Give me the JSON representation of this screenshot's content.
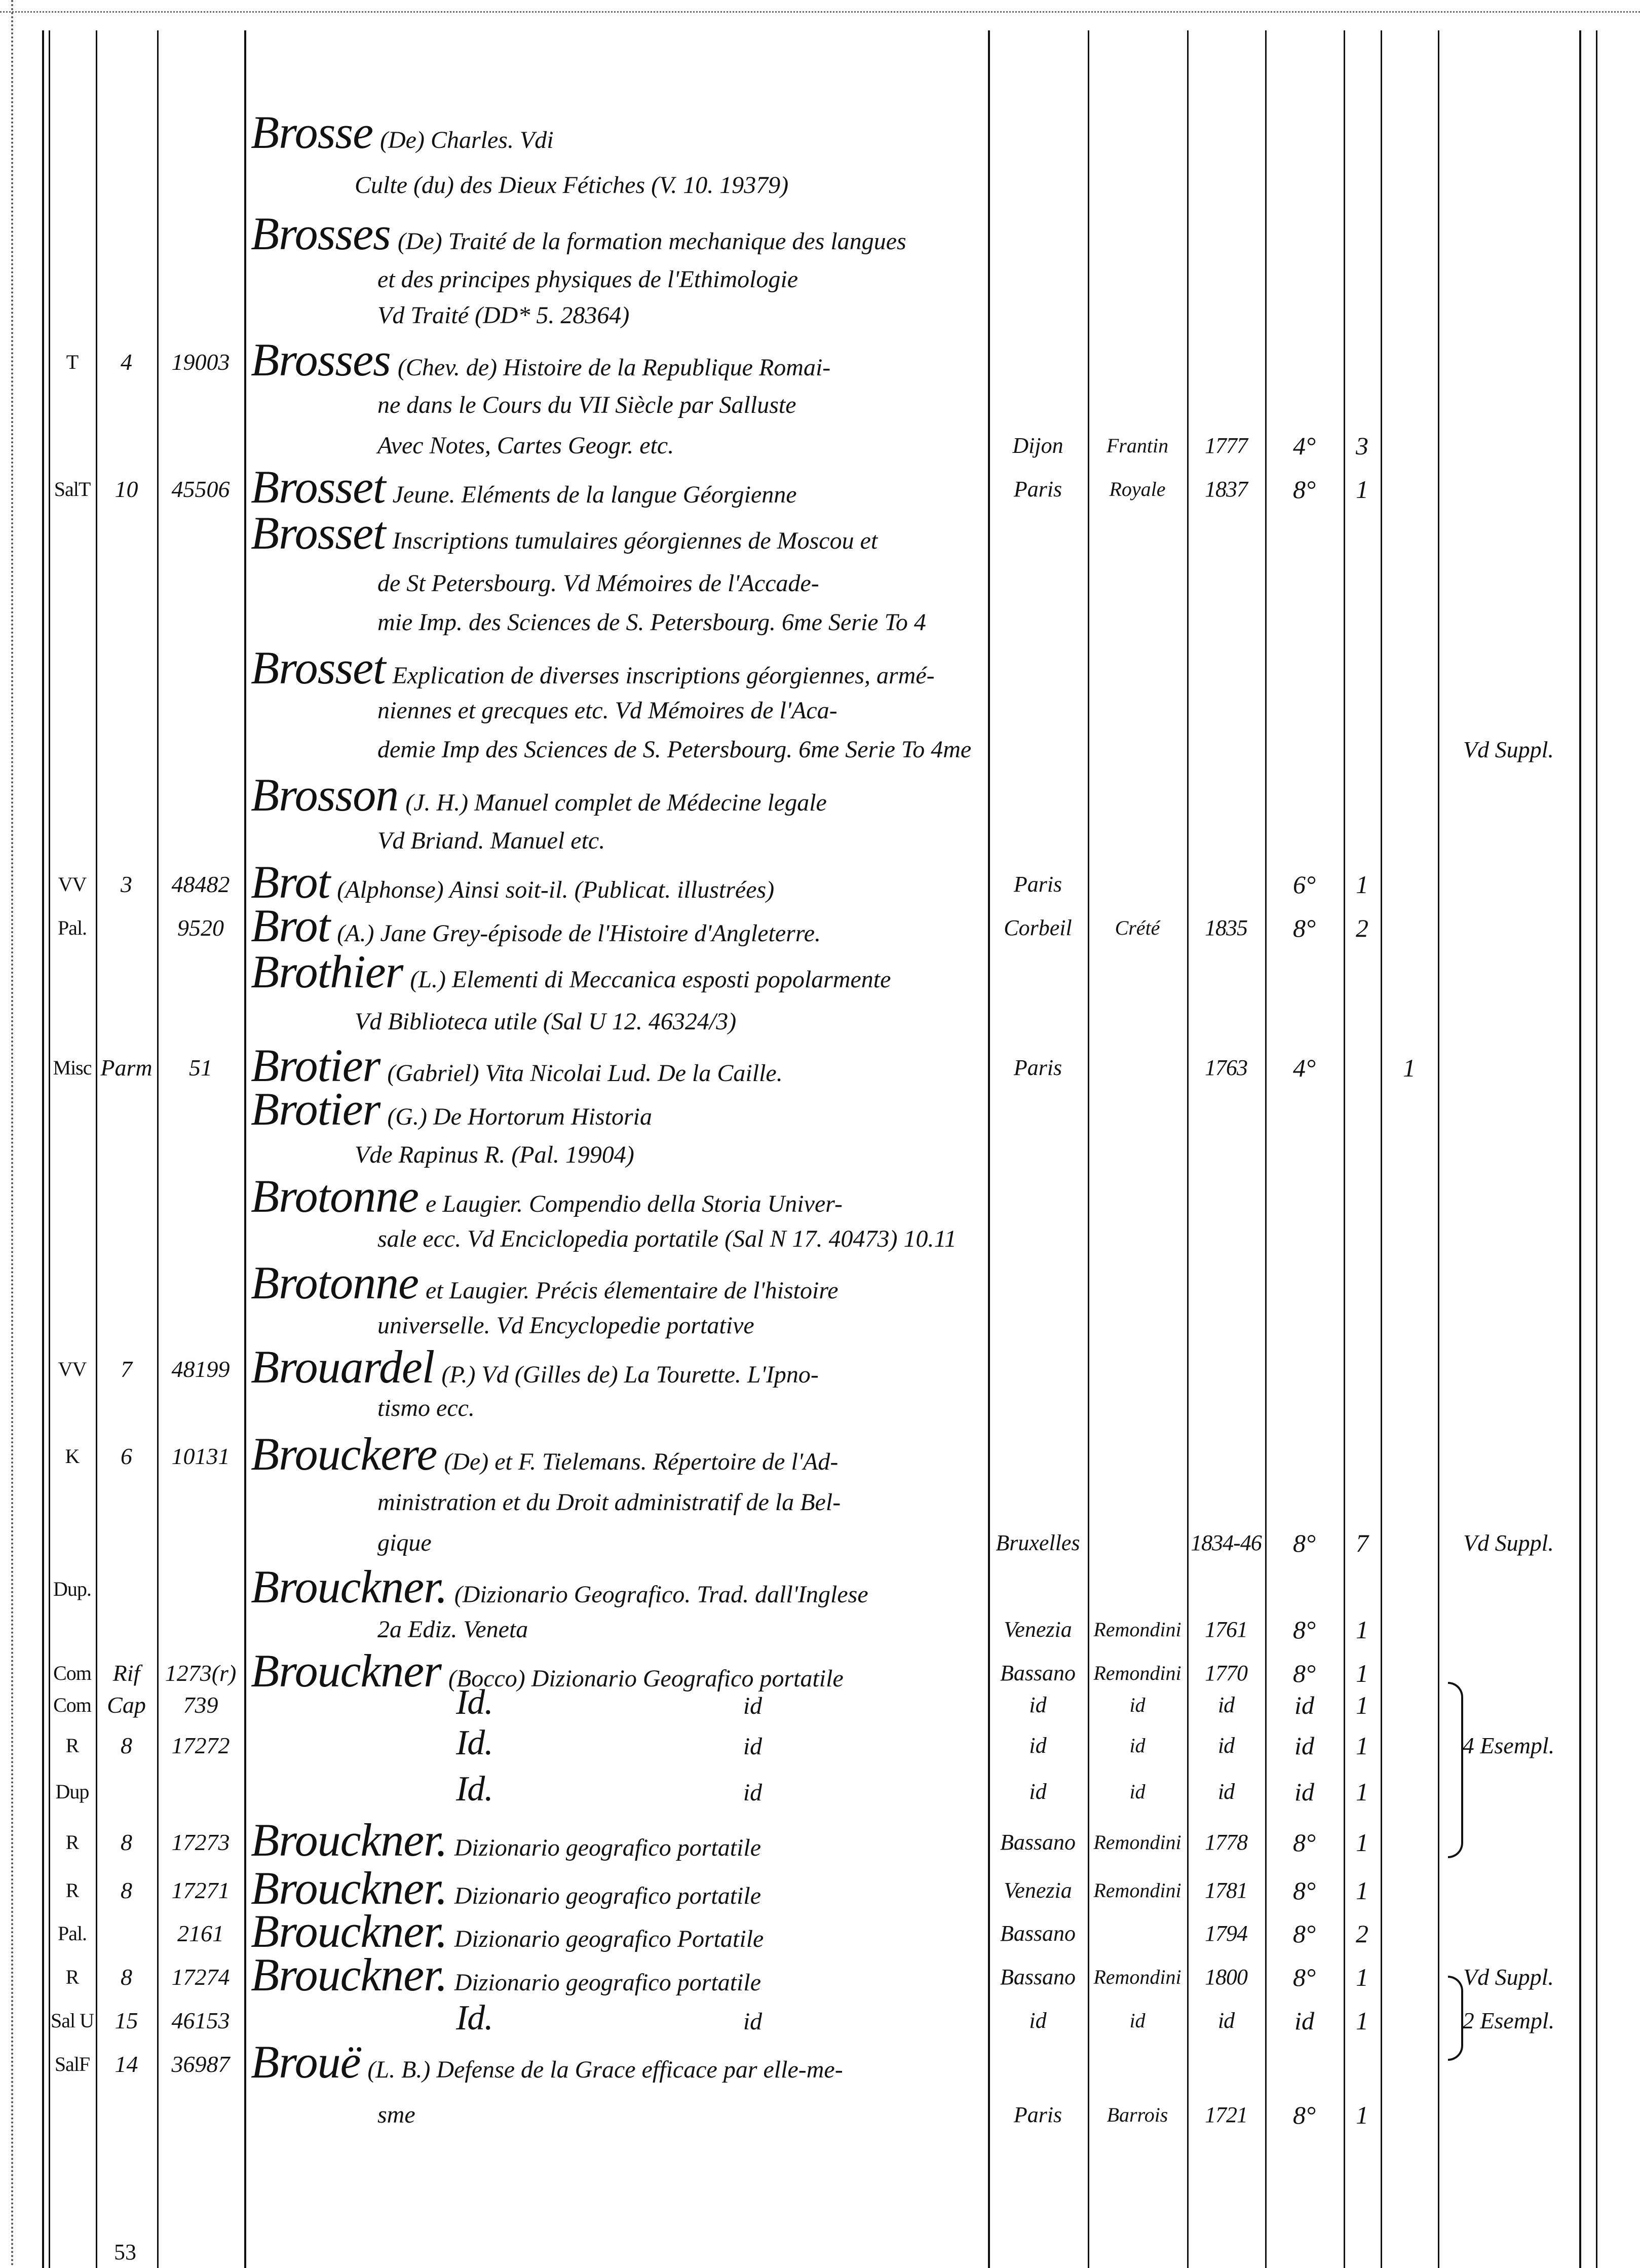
{
  "page_number": "53",
  "rows": [
    {
      "kind": "entry",
      "name": "Brosse",
      "text": "(De) Charles. Vdi"
    },
    {
      "kind": "sub",
      "name": "",
      "text": "Culte (du) des Dieux Fétiches (V. 10. 19379)"
    },
    {
      "kind": "entry",
      "name": "Brosses",
      "text": "(De) Traité de la formation mechanique des langues"
    },
    {
      "kind": "cont",
      "name": "",
      "text": "et des principes physiques de l'Ethimologie"
    },
    {
      "kind": "cont",
      "name": "",
      "text": "Vd Traité (DD* 5. 28364)"
    },
    {
      "kind": "entry",
      "c1": "T",
      "c2": "4",
      "c3": "19003",
      "name": "Brosses",
      "text": "(Chev. de) Histoire de la Republique Romai-"
    },
    {
      "kind": "cont",
      "name": "",
      "text": "ne dans le Cours du VII Siècle par Salluste"
    },
    {
      "kind": "cont",
      "name": "",
      "text": "Avec Notes, Cartes Geogr. etc.",
      "place": "Dijon",
      "printer": "Frantin",
      "year": "1777",
      "format": "4°",
      "vols": "3"
    },
    {
      "kind": "entry",
      "c1": "SalT",
      "c2": "10",
      "c3": "45506",
      "name": "Brosset",
      "text": "Jeune. Eléments de la langue Géorgienne",
      "place": "Paris",
      "printer": "Royale",
      "year": "1837",
      "format": "8°",
      "vols": "1"
    },
    {
      "kind": "entry",
      "name": "Brosset",
      "text": "Inscriptions tumulaires géorgiennes de Moscou et"
    },
    {
      "kind": "cont",
      "name": "",
      "text": "de St Petersbourg. Vd Mémoires de l'Accade-"
    },
    {
      "kind": "cont",
      "name": "",
      "text": "mie Imp. des Sciences de S. Petersbourg. 6me Serie To 4"
    },
    {
      "kind": "entry",
      "name": "Brosset",
      "text": "Explication de diverses inscriptions géorgiennes, armé-"
    },
    {
      "kind": "cont",
      "name": "",
      "text": "niennes et grecques etc. Vd Mémoires de l'Aca-"
    },
    {
      "kind": "cont",
      "name": "",
      "text": "demie Imp des Sciences de S. Petersbourg. 6me Serie To 4me",
      "note": "Vd Suppl."
    },
    {
      "kind": "entry",
      "name": "Brosson",
      "text": "(J. H.) Manuel complet de Médecine legale"
    },
    {
      "kind": "cont",
      "name": "",
      "text": "Vd Briand. Manuel etc."
    },
    {
      "kind": "entry",
      "c1": "VV",
      "c2": "3",
      "c3": "48482",
      "name": "Brot",
      "text": "(Alphonse) Ainsi soit-il. (Publicat. illustrées)",
      "place": "Paris",
      "format": "6°",
      "vols": "1"
    },
    {
      "kind": "entry",
      "c1": "Pal.",
      "c3": "9520",
      "name": "Brot",
      "text": "(A.) Jane Grey-épisode de l'Histoire d'Angleterre.",
      "place": "Corbeil",
      "printer": "Crété",
      "year": "1835",
      "format": "8°",
      "vols": "2"
    },
    {
      "kind": "entry",
      "name": "Brothier",
      "text": "(L.) Elementi di Meccanica esposti popolarmente"
    },
    {
      "kind": "sub",
      "name": "",
      "text": "Vd Biblioteca utile (Sal U 12. 46324/3)"
    },
    {
      "kind": "entry",
      "c1": "Misc",
      "c2": "Parm",
      "c3": "51",
      "name": "Brotier",
      "text": "(Gabriel) Vita Nicolai Lud. De la Caille.",
      "place": "Paris",
      "year": "1763",
      "format": "4°",
      "extra": "1"
    },
    {
      "kind": "entry",
      "name": "Brotier",
      "text": "(G.) De Hortorum Historia"
    },
    {
      "kind": "sub",
      "name": "",
      "text": "Vde Rapinus R. (Pal. 19904)"
    },
    {
      "kind": "entry",
      "name": "Brotonne",
      "text": "e Laugier. Compendio della Storia Univer-"
    },
    {
      "kind": "cont",
      "name": "",
      "text": "sale ecc. Vd Enciclopedia portatile (Sal N 17. 40473) 10.11"
    },
    {
      "kind": "entry",
      "name": "Brotonne",
      "text": "et Laugier. Précis élementaire de l'histoire"
    },
    {
      "kind": "cont",
      "name": "",
      "text": "universelle. Vd Encyclopedie portative"
    },
    {
      "kind": "entry",
      "c1": "VV",
      "c2": "7",
      "c3": "48199",
      "name": "Brouardel",
      "text": "(P.) Vd (Gilles de) La Tourette. L'Ipno-"
    },
    {
      "kind": "cont",
      "name": "",
      "text": "tismo ecc."
    },
    {
      "kind": "entry",
      "c1": "K",
      "c2": "6",
      "c3": "10131",
      "name": "Brouckere",
      "text": "(De) et F. Tielemans. Répertoire de l'Ad-"
    },
    {
      "kind": "cont",
      "name": "",
      "text": "ministration et du Droit administratif de la Bel-"
    },
    {
      "kind": "cont",
      "name": "",
      "text": "gique",
      "place": "Bruxelles",
      "year": "1834-46",
      "format": "8°",
      "vols": "7",
      "note": "Vd Suppl."
    },
    {
      "kind": "entry",
      "c1": "Dup.",
      "name": "Brouckner.",
      "text": "(Dizionario Geografico. Trad. dall'Inglese"
    },
    {
      "kind": "cont",
      "name": "",
      "text": "2a Ediz. Veneta",
      "place": "Venezia",
      "printer": "Remondini",
      "year": "1761",
      "format": "8°",
      "vols": "1"
    },
    {
      "kind": "entry",
      "c1": "Com",
      "c2": "Rif",
      "c3": "1273(r)",
      "name": "Brouckner",
      "text": "(Bocco) Dizionario Geografico portatile",
      "place": "Bassano",
      "printer": "Remondini",
      "year": "1770",
      "format": "8°",
      "vols": "1"
    },
    {
      "kind": "id",
      "c1": "Com",
      "c2": "Cap",
      "c3": "739",
      "name": "Id.",
      "text": "id",
      "place": "id",
      "printer": "id",
      "year": "id",
      "format": "id",
      "vols": "1"
    },
    {
      "kind": "id",
      "c1": "R",
      "c2": "8",
      "c3": "17272",
      "name": "Id.",
      "text": "id",
      "place": "id",
      "printer": "id",
      "year": "id",
      "format": "id",
      "vols": "1",
      "note": "4 Esempl."
    },
    {
      "kind": "id",
      "c1": "Dup",
      "name": "Id.",
      "text": "id",
      "place": "id",
      "printer": "id",
      "year": "id",
      "format": "id",
      "vols": "1"
    },
    {
      "kind": "entry",
      "c1": "R",
      "c2": "8",
      "c3": "17273",
      "name": "Brouckner.",
      "text": "Dizionario geografico portatile",
      "place": "Bassano",
      "printer": "Remondini",
      "year": "1778",
      "format": "8°",
      "vols": "1"
    },
    {
      "kind": "entry",
      "c1": "R",
      "c2": "8",
      "c3": "17271",
      "name": "Brouckner.",
      "text": "Dizionario geografico portatile",
      "place": "Venezia",
      "printer": "Remondini",
      "year": "1781",
      "format": "8°",
      "vols": "1"
    },
    {
      "kind": "entry",
      "c1": "Pal.",
      "c3": "2161",
      "name": "Brouckner.",
      "text": "Dizionario geografico Portatile",
      "place": "Bassano",
      "year": "1794",
      "format": "8°",
      "vols": "2"
    },
    {
      "kind": "entry",
      "c1": "R",
      "c2": "8",
      "c3": "17274",
      "name": "Brouckner.",
      "text": "Dizionario geografico portatile",
      "place": "Bassano",
      "printer": "Remondini",
      "year": "1800",
      "format": "8°",
      "vols": "1",
      "note": "Vd Suppl."
    },
    {
      "kind": "id",
      "c1": "Sal U",
      "c2": "15",
      "c3": "46153",
      "name": "Id.",
      "text": "id",
      "place": "id",
      "printer": "id",
      "year": "id",
      "format": "id",
      "vols": "1",
      "note": "2 Esempl."
    },
    {
      "kind": "entry",
      "c1": "SalF",
      "c2": "14",
      "c3": "36987",
      "name": "Brouë",
      "text": "(L. B.) Defense de la Grace efficace par elle-me-"
    },
    {
      "kind": "cont",
      "name": "",
      "text": "sme",
      "place": "Paris",
      "printer": "Barrois",
      "year": "1721",
      "format": "8°",
      "vols": "1"
    }
  ]
}
